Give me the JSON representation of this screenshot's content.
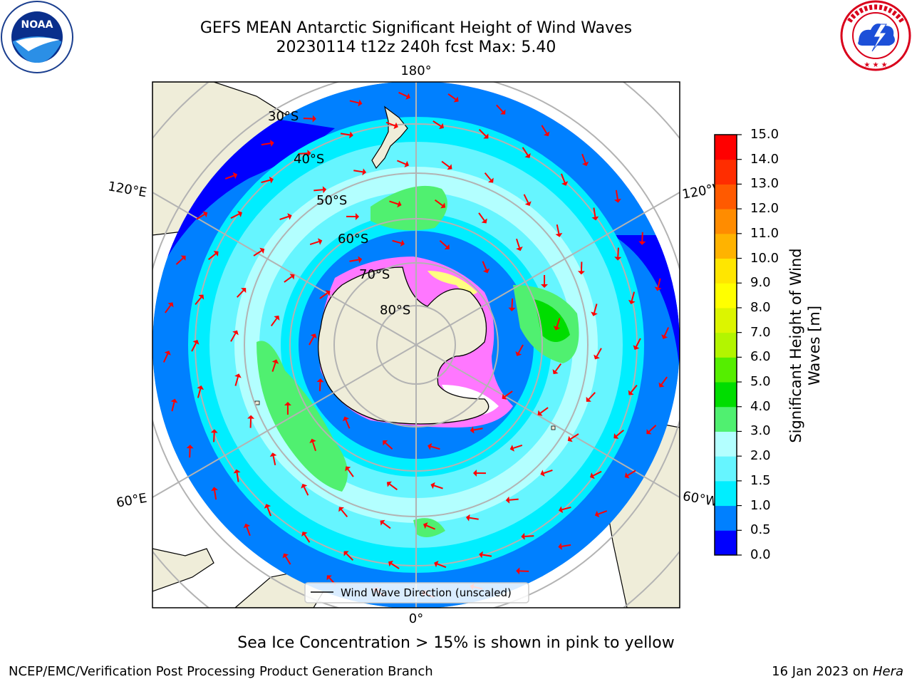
{
  "header": {
    "title_line1": "GEFS MEAN Antarctic Significant Height of Wind Waves",
    "title_line2": "20230114 t12z 240h fcst   Max: 5.40"
  },
  "logos": {
    "left": "noaa-logo",
    "left_text": "NOAA",
    "right": "national-weather-service-logo",
    "right_text": "NATIONAL WEATHER SERVICE"
  },
  "map": {
    "projection": "south-polar-stereographic",
    "latitude_labels": [
      "30°S",
      "40°S",
      "50°S",
      "60°S",
      "70°S",
      "80°S"
    ],
    "longitude_labels": {
      "top": "180°",
      "bottom": "0°",
      "upper_left": "120°E",
      "upper_right": "120°W",
      "lower_left": "60°E",
      "lower_right": "60°W"
    },
    "gridline_color": "#b3b3b3",
    "land_color": "#efedd9",
    "arrow_color": "#ff0000",
    "sea_ice_colors": [
      "#ff00ff",
      "#ff77ff",
      "#ffff80",
      "#ffffff"
    ]
  },
  "legend": {
    "label": "Wind Wave Direction (unscaled)"
  },
  "colorbar": {
    "label_line1": "Significant Height of Wind",
    "label_line2": "Waves [m]",
    "ticks": [
      "0.0",
      "0.5",
      "1.0",
      "1.5",
      "2.0",
      "3.0",
      "4.0",
      "5.0",
      "6.0",
      "7.0",
      "8.0",
      "9.0",
      "10.0",
      "11.0",
      "12.0",
      "13.0",
      "14.0",
      "15.0"
    ],
    "colors": [
      "#0000ff",
      "#0080ff",
      "#00eeff",
      "#66f5ff",
      "#b3ffff",
      "#50f070",
      "#00dd00",
      "#55ee00",
      "#b3f500",
      "#dcf500",
      "#ffff00",
      "#ffe600",
      "#ffb300",
      "#ff8c00",
      "#ff5a00",
      "#ff2d00",
      "#ff0000"
    ]
  },
  "subtitle": "Sea Ice Concentration > 15% is shown in pink to yellow",
  "footer": {
    "left": "NCEP/EMC/Verification Post Processing Product Generation Branch",
    "right_date": "16 Jan 2023 on",
    "right_host": "Hera"
  }
}
